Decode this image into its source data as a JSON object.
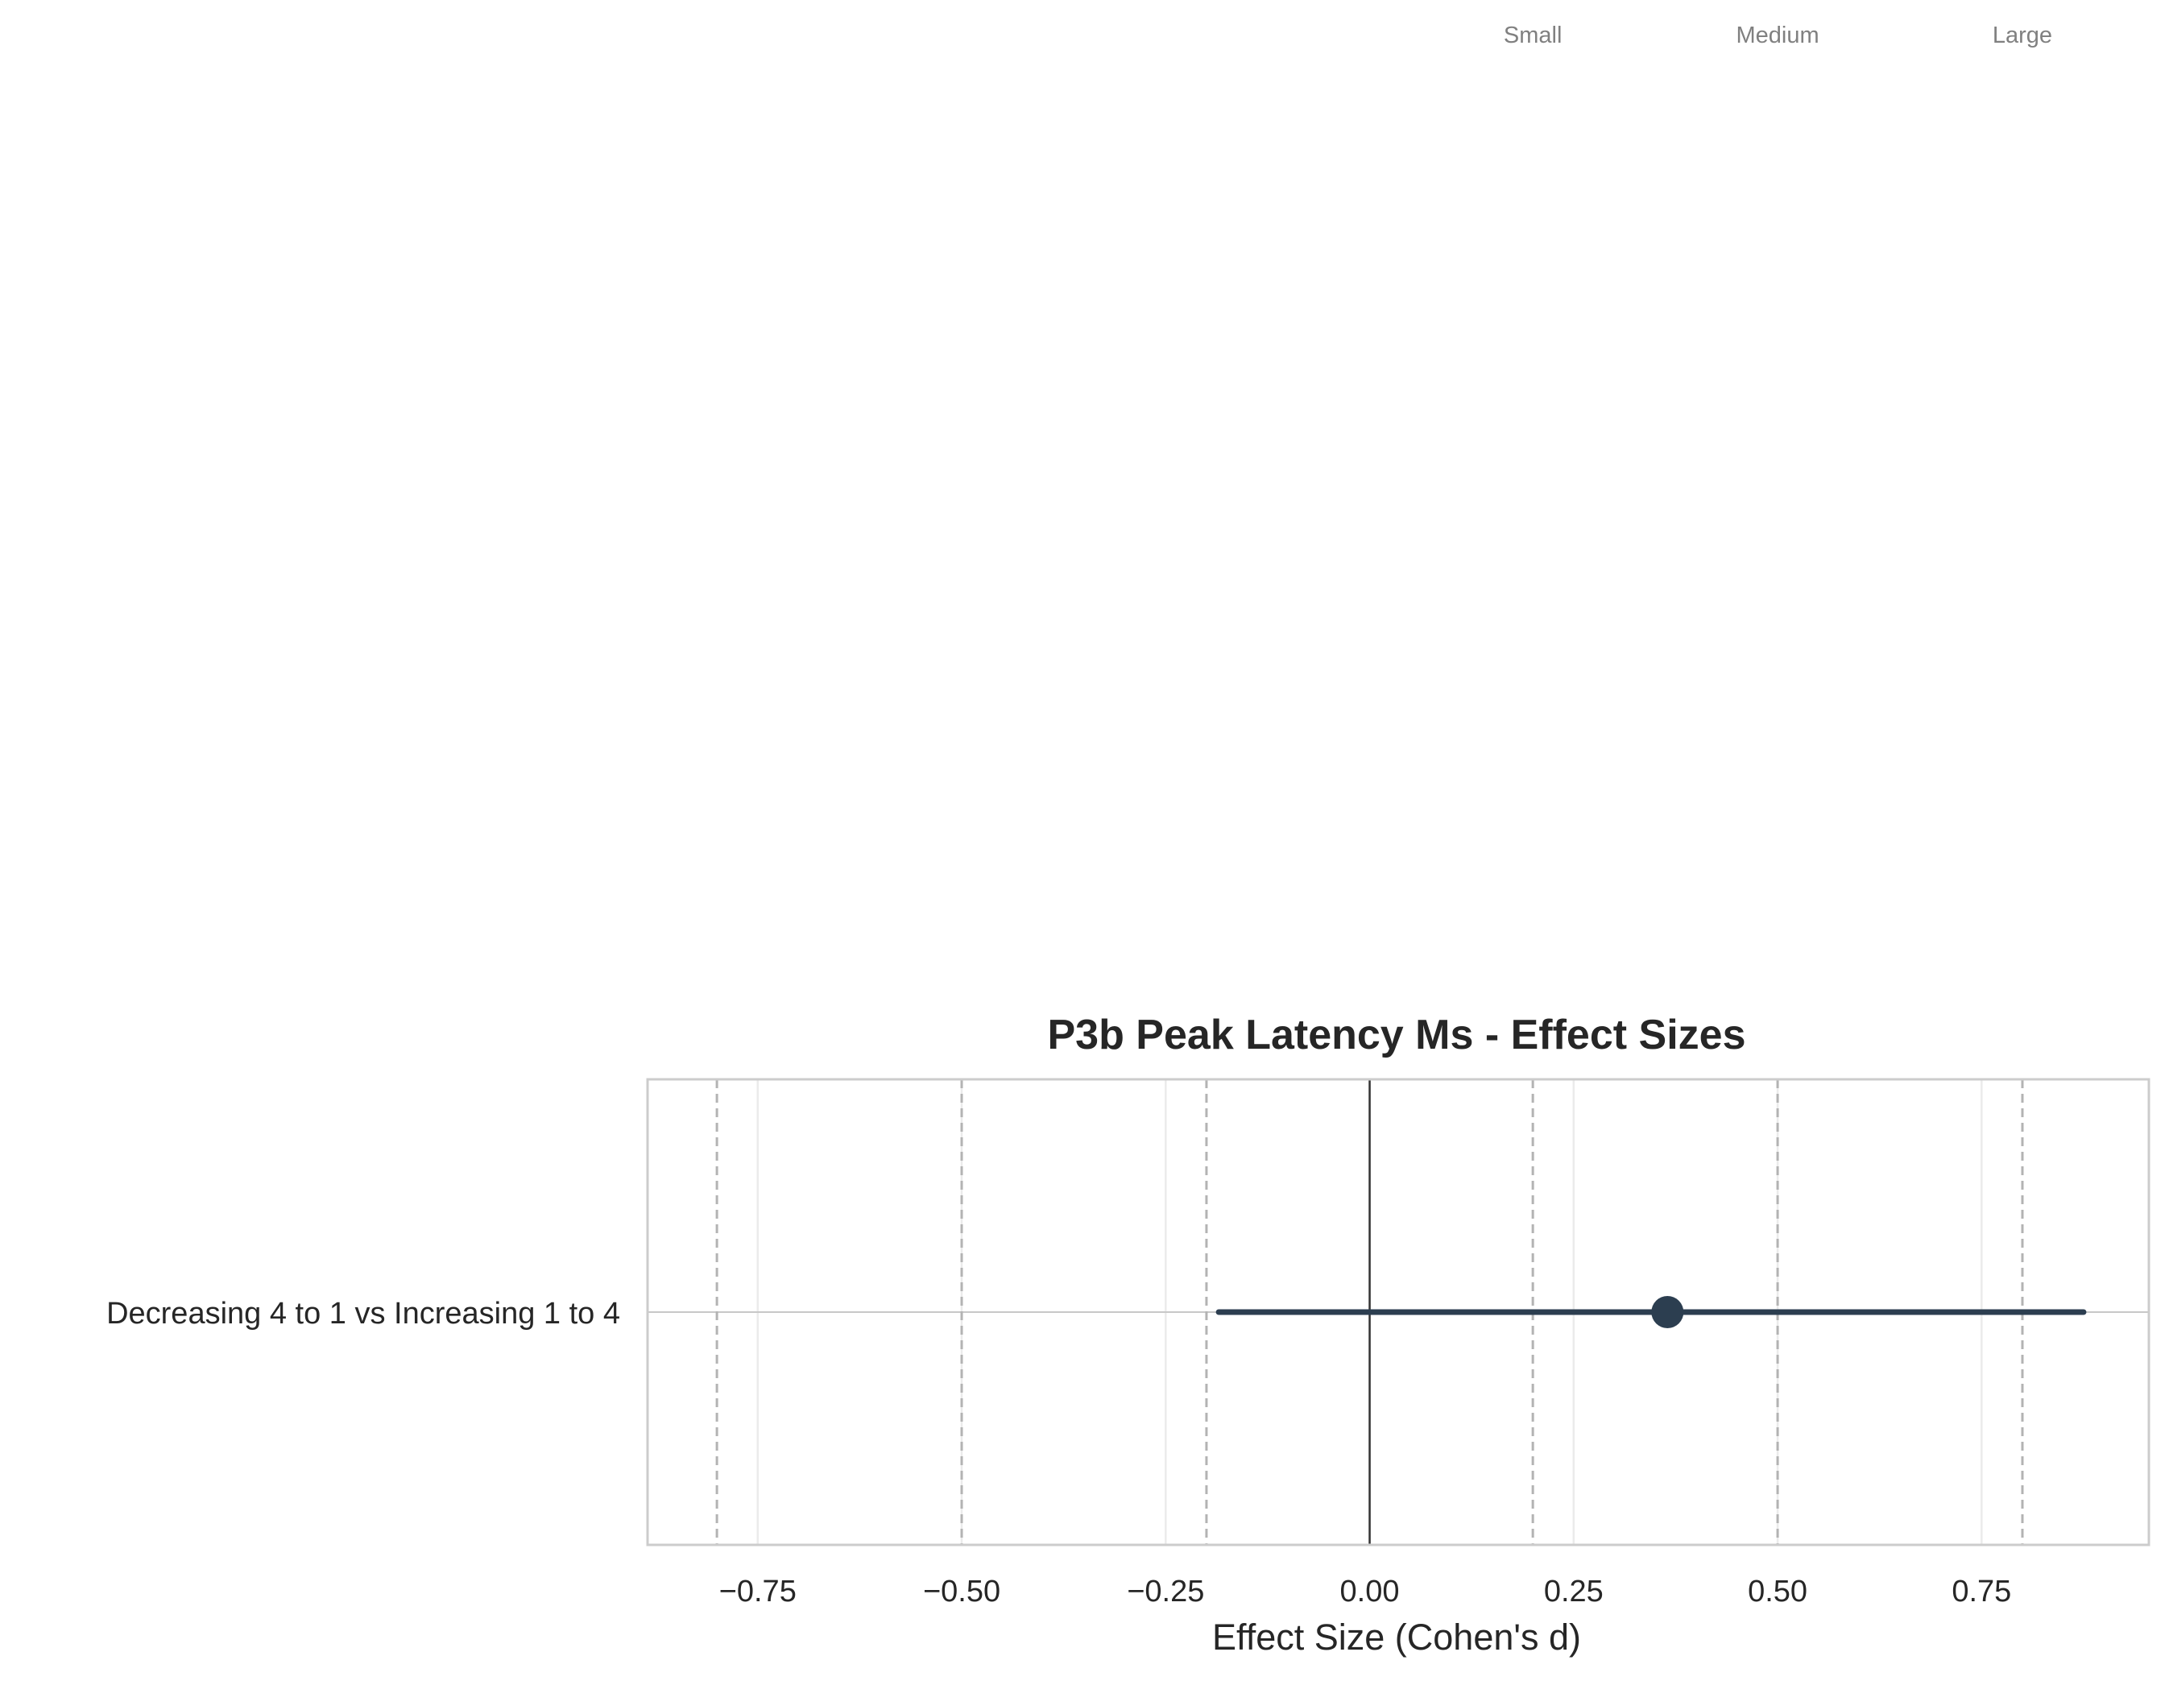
{
  "chart_data": {
    "type": "forest",
    "title": "P3b Peak Latency Ms - Effect Sizes",
    "xlabel": "Effect Size (Cohen's d)",
    "ylabel": "",
    "xlim": [
      -0.885,
      0.955
    ],
    "x_ticks": [
      -0.75,
      -0.5,
      -0.25,
      0.0,
      0.25,
      0.5,
      0.75
    ],
    "x_tick_labels": [
      "−0.75",
      "−0.50",
      "−0.25",
      "0.00",
      "0.25",
      "0.50",
      "0.75"
    ],
    "grid": true,
    "zero_line": 0,
    "categories": [
      "Decreasing 4 to 1 vs Increasing 1 to 4"
    ],
    "series": [
      {
        "estimates": [
          0.365
        ],
        "ci_lower": [
          -0.185
        ],
        "ci_upper": [
          0.875
        ],
        "color": "#2c3e50"
      }
    ],
    "reference_lines": [
      -0.8,
      -0.5,
      -0.2,
      0.2,
      0.5,
      0.8
    ],
    "threshold_labels": [
      {
        "value": 0.2,
        "label": "Small"
      },
      {
        "value": 0.5,
        "label": "Medium"
      },
      {
        "value": 0.8,
        "label": "Large"
      }
    ],
    "colors": {
      "point": "#2c3e50",
      "frame": "#cccccc",
      "grid": "#ebebeb",
      "reference": "#b3b3b3",
      "zero_line": "#333333",
      "text": "#262626",
      "threshold_text": "#808080"
    }
  }
}
